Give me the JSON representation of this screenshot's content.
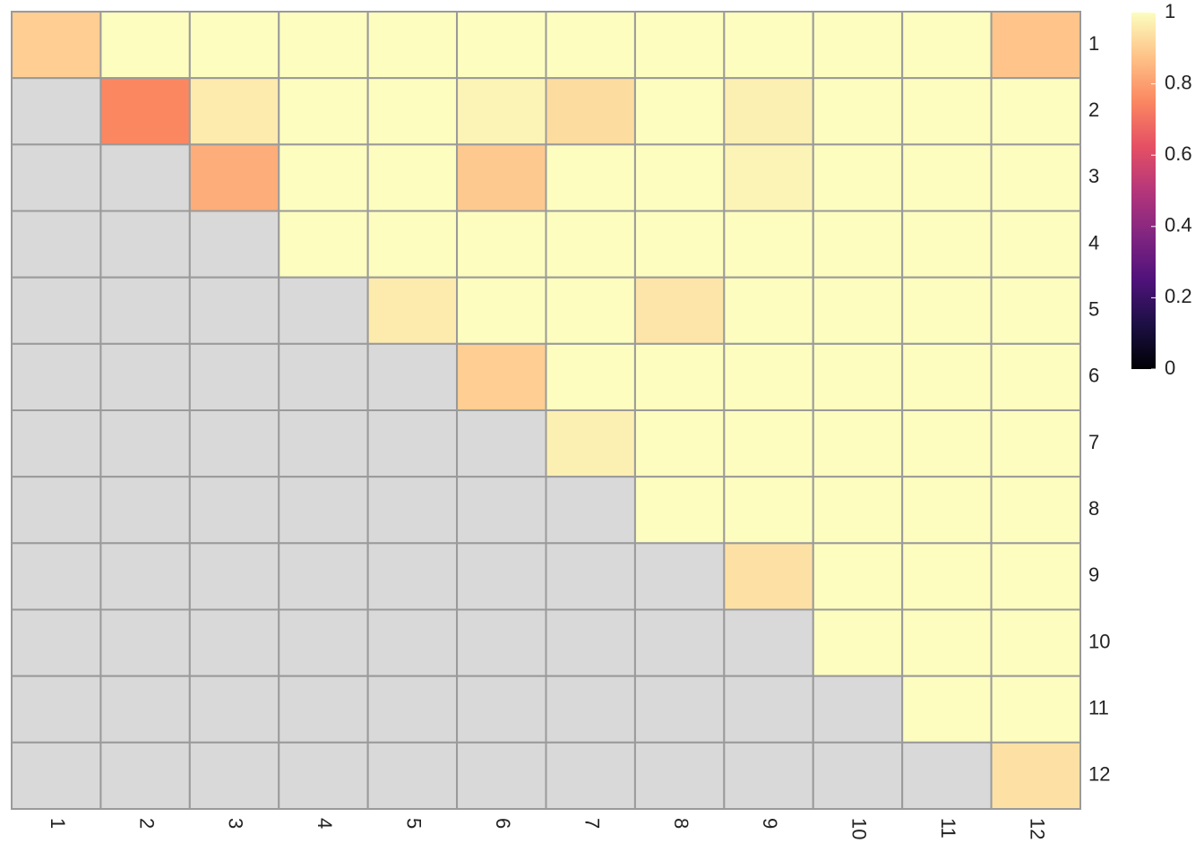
{
  "chart_data": {
    "type": "heatmap",
    "x": [
      "1",
      "2",
      "3",
      "4",
      "5",
      "6",
      "7",
      "8",
      "9",
      "10",
      "11",
      "12"
    ],
    "y": [
      "1",
      "2",
      "3",
      "4",
      "5",
      "6",
      "7",
      "8",
      "9",
      "10",
      "11",
      "12"
    ],
    "values": [
      [
        0.9,
        1,
        1,
        1,
        1,
        1,
        1,
        1,
        1,
        1,
        1,
        0.88
      ],
      [
        null,
        0.75,
        0.96,
        1,
        1,
        0.98,
        0.93,
        1,
        0.97,
        1,
        1,
        1
      ],
      [
        null,
        null,
        0.83,
        1,
        1,
        0.89,
        1,
        1,
        0.98,
        1,
        1,
        1
      ],
      [
        null,
        null,
        null,
        1,
        1,
        1,
        1,
        1,
        1,
        1,
        1,
        1
      ],
      [
        null,
        null,
        null,
        null,
        0.96,
        1,
        1,
        0.95,
        1,
        1,
        1,
        1
      ],
      [
        null,
        null,
        null,
        null,
        null,
        0.9,
        1,
        1,
        1,
        1,
        1,
        1
      ],
      [
        null,
        null,
        null,
        null,
        null,
        null,
        0.97,
        1,
        1,
        1,
        1,
        1
      ],
      [
        null,
        null,
        null,
        null,
        null,
        null,
        null,
        1,
        1,
        1,
        1,
        1
      ],
      [
        null,
        null,
        null,
        null,
        null,
        null,
        null,
        null,
        0.94,
        1,
        1,
        1
      ],
      [
        null,
        null,
        null,
        null,
        null,
        null,
        null,
        null,
        null,
        1,
        1,
        1
      ],
      [
        null,
        null,
        null,
        null,
        null,
        null,
        null,
        null,
        null,
        null,
        1,
        1
      ],
      [
        null,
        null,
        null,
        null,
        null,
        null,
        null,
        null,
        null,
        null,
        null,
        0.94
      ]
    ],
    "clim": [
      0,
      1
    ],
    "colorbar_ticks": [
      0,
      0.2,
      0.4,
      0.6,
      0.8,
      1
    ],
    "colorscale": [
      "#000004",
      "#1c1044",
      "#4f127b",
      "#812581",
      "#b5367a",
      "#e55064",
      "#fb8761",
      "#fec287",
      "#fcfdbf"
    ],
    "na_color": "#d9d9d9",
    "border_color": "#9a9a9a"
  }
}
